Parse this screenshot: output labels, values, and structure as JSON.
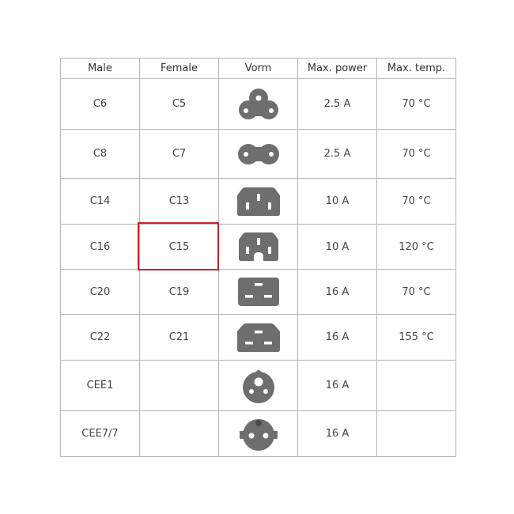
{
  "table": {
    "headers": [
      "Male",
      "Female",
      "Vorm",
      "Max. power",
      "Max. temp."
    ],
    "rows": [
      {
        "male": "C6",
        "female": "C5",
        "icon": "iec-c5-cloverleaf-icon",
        "power": "2.5 A",
        "temp": "70 °C"
      },
      {
        "male": "C8",
        "female": "C7",
        "icon": "iec-c7-figure8-icon",
        "power": "2.5 A",
        "temp": "70 °C"
      },
      {
        "male": "C14",
        "female": "C13",
        "icon": "iec-c13-icon",
        "power": "10 A",
        "temp": "70 °C"
      },
      {
        "male": "C16",
        "female": "C15",
        "icon": "iec-c15-icon",
        "power": "10 A",
        "temp": "120 °C",
        "highlighted": true
      },
      {
        "male": "C20",
        "female": "C19",
        "icon": "iec-c19-icon",
        "power": "16 A",
        "temp": "70 °C"
      },
      {
        "male": "C22",
        "female": "C21",
        "icon": "iec-c21-icon",
        "power": "16 A",
        "temp": "155 °C"
      },
      {
        "male": "CEE1",
        "female": "",
        "icon": "cee1-plug-icon",
        "power": "16 A",
        "temp": ""
      },
      {
        "male": "CEE7/7",
        "female": "",
        "icon": "cee7-7-schuko-icon",
        "power": "16 A",
        "temp": ""
      }
    ]
  },
  "colors": {
    "icon": "#6e6e6e",
    "highlight": "#c8202f",
    "grid": "#b5b5b5"
  }
}
